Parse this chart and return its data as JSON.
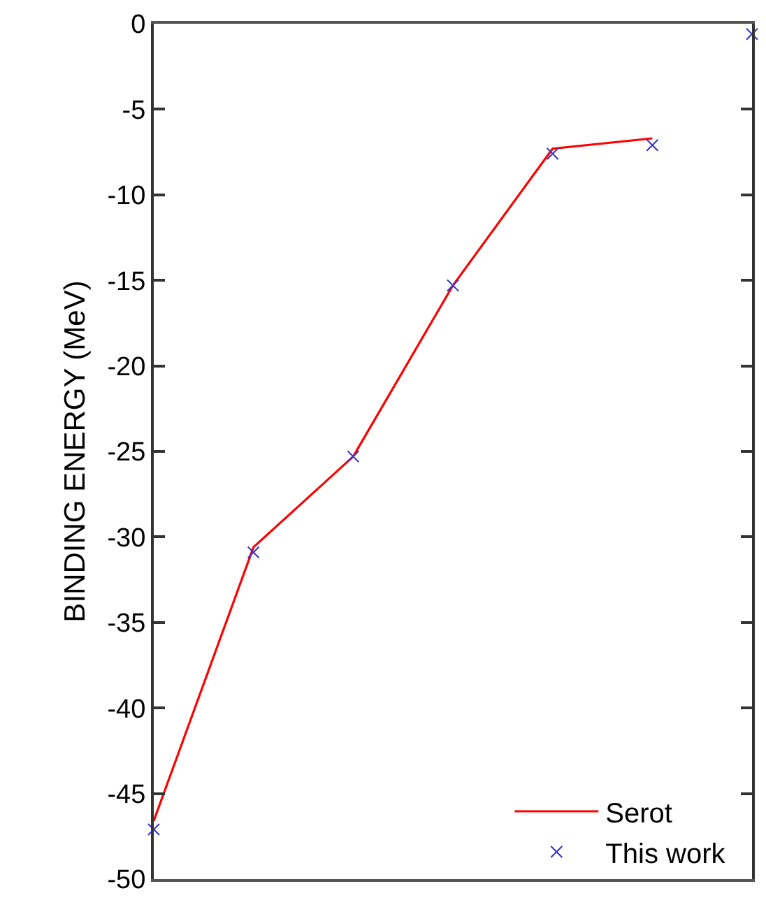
{
  "chart_data": {
    "type": "line",
    "ylabel": "BINDING ENERGY (MeV)",
    "categories": [
      null,
      null,
      null,
      null,
      null,
      null,
      null
    ],
    "series": [
      {
        "name": "Serot",
        "color": "#ff0000",
        "marker": "none",
        "line_style": "solid",
        "values": [
          -46.6,
          -30.6,
          -25.3,
          -15.3,
          -7.3,
          -6.7,
          null
        ]
      },
      {
        "name": "This work",
        "type": "scatter",
        "color": "#3333cc",
        "marker": "cross",
        "values": [
          -47.1,
          -30.9,
          -25.3,
          -15.3,
          -7.6,
          -7.1,
          -0.6
        ]
      }
    ],
    "ylim": [
      -50,
      0
    ],
    "yticks": [
      -50,
      -45,
      -40,
      -35,
      -30,
      -25,
      -20,
      -15,
      -10,
      -5,
      0
    ],
    "tick_labels": "y",
    "legend": "bottom right"
  }
}
